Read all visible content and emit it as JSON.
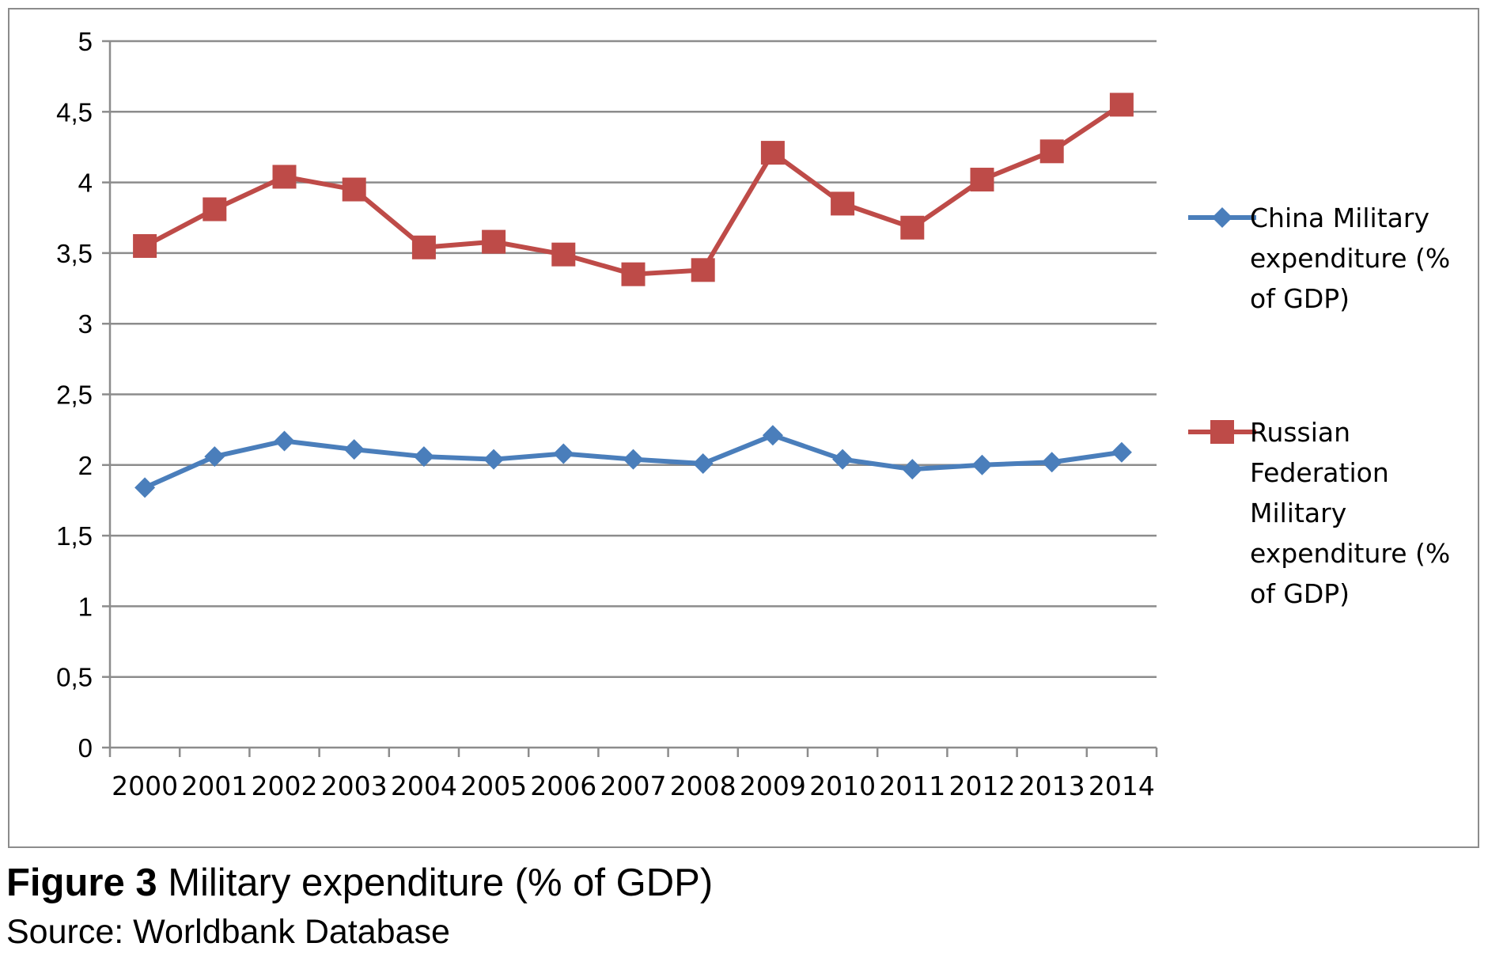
{
  "chart_data": {
    "type": "line",
    "categories": [
      "2000",
      "2001",
      "2002",
      "2003",
      "2004",
      "2005",
      "2006",
      "2007",
      "2008",
      "2009",
      "2010",
      "2011",
      "2012",
      "2013",
      "2014"
    ],
    "series": [
      {
        "name": "China Military expenditure (% of GDP)",
        "legend_lines": [
          "China Military",
          "expenditure (%",
          "of GDP)"
        ],
        "color": "#4a7ebb",
        "marker": "diamond",
        "values": [
          1.84,
          2.06,
          2.17,
          2.11,
          2.06,
          2.04,
          2.08,
          2.04,
          2.01,
          2.21,
          2.04,
          1.97,
          2.0,
          2.02,
          2.09
        ]
      },
      {
        "name": "Russian Federation Military expenditure (% of GDP)",
        "legend_lines": [
          "Russian",
          "Federation",
          "Military",
          "expenditure (%",
          "of GDP)"
        ],
        "color": "#be4b48",
        "marker": "square",
        "values": [
          3.55,
          3.81,
          4.04,
          3.95,
          3.54,
          3.58,
          3.49,
          3.35,
          3.38,
          4.21,
          3.85,
          3.68,
          4.02,
          4.22,
          4.55
        ]
      }
    ],
    "ylim": [
      0,
      5
    ],
    "y_ticks": [
      "0",
      "0,5",
      "1",
      "1,5",
      "2",
      "2,5",
      "3",
      "3,5",
      "4",
      "4,5",
      "5"
    ],
    "grid": true,
    "legend_position": "right",
    "xlabel": "",
    "ylabel": ""
  },
  "caption": {
    "figure_number": "Figure 3",
    "title": "Military expenditure (% of GDP)"
  },
  "source": "Source: Worldbank Database"
}
